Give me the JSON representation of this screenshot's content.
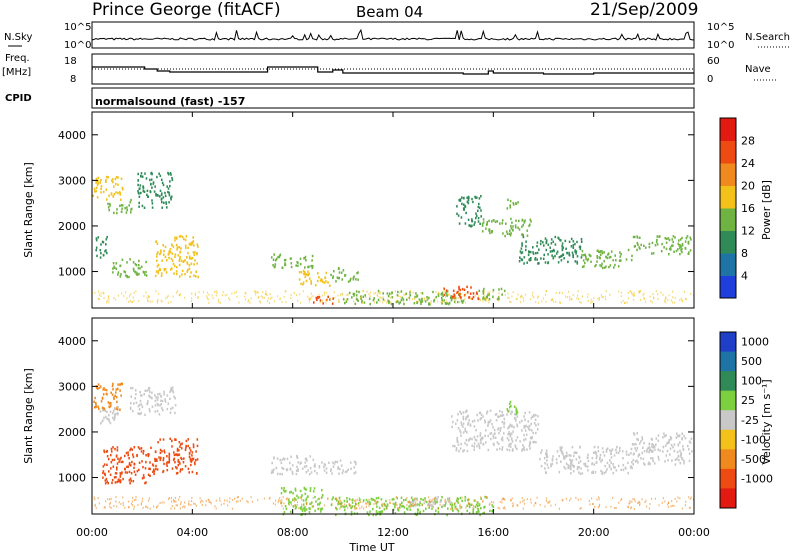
{
  "header": {
    "station": "Prince George (fitACF)",
    "beam": "Beam 04",
    "date": "21/Sep/2009"
  },
  "top_panels": {
    "nsky_label": "N.Sky",
    "nsky_ticks": [
      "10^5",
      "10^0"
    ],
    "nsearch_label": "N.Search",
    "nsearch_ticks": [
      "10^5",
      "10^0"
    ],
    "freq_label": "Freq.",
    "freq_unit": "[MHz]",
    "freq_ticks": [
      "18",
      "8"
    ],
    "nave_label": "Nave",
    "nave_ticks": [
      "60",
      "0"
    ],
    "cpid_label": "CPID",
    "cpid_value": "normalsound (fast) -157",
    "freq_series_mhz": [
      [
        0,
        14
      ],
      [
        2,
        14
      ],
      [
        2.1,
        13
      ],
      [
        2.6,
        12
      ],
      [
        3.1,
        11.5
      ],
      [
        6.9,
        11.5
      ],
      [
        7,
        14
      ],
      [
        8.9,
        14
      ],
      [
        9,
        11.5
      ],
      [
        9.6,
        12.5
      ],
      [
        10,
        11
      ],
      [
        12,
        11
      ],
      [
        14.8,
        10.5
      ],
      [
        15.8,
        12
      ],
      [
        16,
        11
      ],
      [
        18,
        10.5
      ],
      [
        20,
        11
      ],
      [
        22,
        11
      ],
      [
        24,
        11
      ]
    ],
    "nave_level": 30
  },
  "chart_data": [
    {
      "type": "heatmap",
      "name": "power",
      "ylabel": "Slant Range [km]",
      "xlabel": "Time UT",
      "xlim": [
        0,
        24
      ],
      "ylim": [
        200,
        4500
      ],
      "x_ticks": [
        "00:00",
        "04:00",
        "08:00",
        "12:00",
        "16:00",
        "20:00",
        "00:00"
      ],
      "y_ticks": [
        1000,
        2000,
        3000,
        4000
      ],
      "colorbar": {
        "label": "Power [dB]",
        "ticks": [
          4,
          8,
          12,
          16,
          20,
          24,
          28
        ],
        "range": [
          0,
          30
        ],
        "colors": [
          "#1f3fdc",
          "#1f74a6",
          "#2f8a58",
          "#6fb443",
          "#f2c21a",
          "#f08a1e",
          "#ee4b12",
          "#e21a12"
        ]
      },
      "regions": [
        {
          "t": [
            0.0,
            1.2
          ],
          "r": [
            2600,
            3100
          ],
          "v": 18
        },
        {
          "t": [
            0.6,
            1.6
          ],
          "r": [
            2300,
            2600
          ],
          "v": 14
        },
        {
          "t": [
            1.8,
            3.2
          ],
          "r": [
            2400,
            3200
          ],
          "v": 10
        },
        {
          "t": [
            0.1,
            0.6
          ],
          "r": [
            1300,
            1800
          ],
          "v": 8
        },
        {
          "t": [
            0.8,
            2.2
          ],
          "r": [
            900,
            1300
          ],
          "v": 14
        },
        {
          "t": [
            2.5,
            4.2
          ],
          "r": [
            900,
            1800
          ],
          "v": 18
        },
        {
          "t": [
            7.1,
            8.8
          ],
          "r": [
            1100,
            1400
          ],
          "v": 12
        },
        {
          "t": [
            8.2,
            9.5
          ],
          "r": [
            700,
            1050
          ],
          "v": 18
        },
        {
          "t": [
            8.8,
            9.6
          ],
          "r": [
            300,
            500
          ],
          "v": 24
        },
        {
          "t": [
            9.5,
            10.6
          ],
          "r": [
            800,
            1100
          ],
          "v": 14
        },
        {
          "t": [
            10.0,
            14.8
          ],
          "r": [
            300,
            600
          ],
          "v": 12
        },
        {
          "t": [
            14.0,
            15.4
          ],
          "r": [
            400,
            700
          ],
          "v": 26
        },
        {
          "t": [
            15.4,
            16.5
          ],
          "r": [
            400,
            650
          ],
          "v": 14
        },
        {
          "t": [
            14.5,
            15.5
          ],
          "r": [
            2000,
            2700
          ],
          "v": 8
        },
        {
          "t": [
            15.5,
            17.5
          ],
          "r": [
            1800,
            2200
          ],
          "v": 12
        },
        {
          "t": [
            16.5,
            17.0
          ],
          "r": [
            2350,
            2600
          ],
          "v": 14
        },
        {
          "t": [
            17.0,
            19.5
          ],
          "r": [
            1200,
            1800
          ],
          "v": 10
        },
        {
          "t": [
            19.5,
            21.5
          ],
          "r": [
            1100,
            1500
          ],
          "v": 12
        },
        {
          "t": [
            21.5,
            23.9
          ],
          "r": [
            1400,
            1800
          ],
          "v": 14
        }
      ]
    },
    {
      "type": "heatmap",
      "name": "velocity",
      "ylabel": "Slant Range [km]",
      "xlabel": "Time UT",
      "xlim": [
        0,
        24
      ],
      "ylim": [
        200,
        4500
      ],
      "x_ticks": [
        "00:00",
        "04:00",
        "08:00",
        "12:00",
        "16:00",
        "20:00",
        "00:00"
      ],
      "y_ticks": [
        1000,
        2000,
        3000,
        4000
      ],
      "colorbar": {
        "label": "Velocity [m s⁻¹]",
        "ticks": [
          "1000",
          "500",
          "100",
          "25",
          "-25",
          "-100",
          "-500",
          "-1000"
        ],
        "colors": [
          "#1f3fc8",
          "#1f74a6",
          "#2f8a58",
          "#7cd040",
          "#c8c8c8",
          "#f2c21a",
          "#f08a1e",
          "#ee4b12",
          "#e21a12"
        ]
      },
      "regions": [
        {
          "t": [
            0.0,
            1.2
          ],
          "r": [
            2500,
            3100
          ],
          "v": "-100"
        },
        {
          "t": [
            0.3,
            1.2
          ],
          "r": [
            2200,
            2600
          ],
          "v": "25"
        },
        {
          "t": [
            1.5,
            3.3
          ],
          "r": [
            2400,
            3000
          ],
          "v": "25"
        },
        {
          "t": [
            0.4,
            2.4
          ],
          "r": [
            900,
            1700
          ],
          "v": "-500"
        },
        {
          "t": [
            2.4,
            4.2
          ],
          "r": [
            1100,
            1900
          ],
          "v": "-500"
        },
        {
          "t": [
            7.1,
            8.8
          ],
          "r": [
            1100,
            1500
          ],
          "v": "25"
        },
        {
          "t": [
            8.8,
            10.5
          ],
          "r": [
            1100,
            1400
          ],
          "v": "25"
        },
        {
          "t": [
            7.5,
            9.2
          ],
          "r": [
            200,
            800
          ],
          "v": "100"
        },
        {
          "t": [
            9.5,
            16.0
          ],
          "r": [
            200,
            600
          ],
          "v": "100"
        },
        {
          "t": [
            12.6,
            14.3
          ],
          "r": [
            400,
            600
          ],
          "v": "25"
        },
        {
          "t": [
            14.3,
            17.8
          ],
          "r": [
            1600,
            2500
          ],
          "v": "25"
        },
        {
          "t": [
            16.5,
            17.0
          ],
          "r": [
            2400,
            2700
          ],
          "v": "100"
        },
        {
          "t": [
            17.8,
            21.5
          ],
          "r": [
            1100,
            1700
          ],
          "v": "25"
        },
        {
          "t": [
            21.5,
            23.9
          ],
          "r": [
            1300,
            2000
          ],
          "v": "25"
        }
      ]
    }
  ]
}
